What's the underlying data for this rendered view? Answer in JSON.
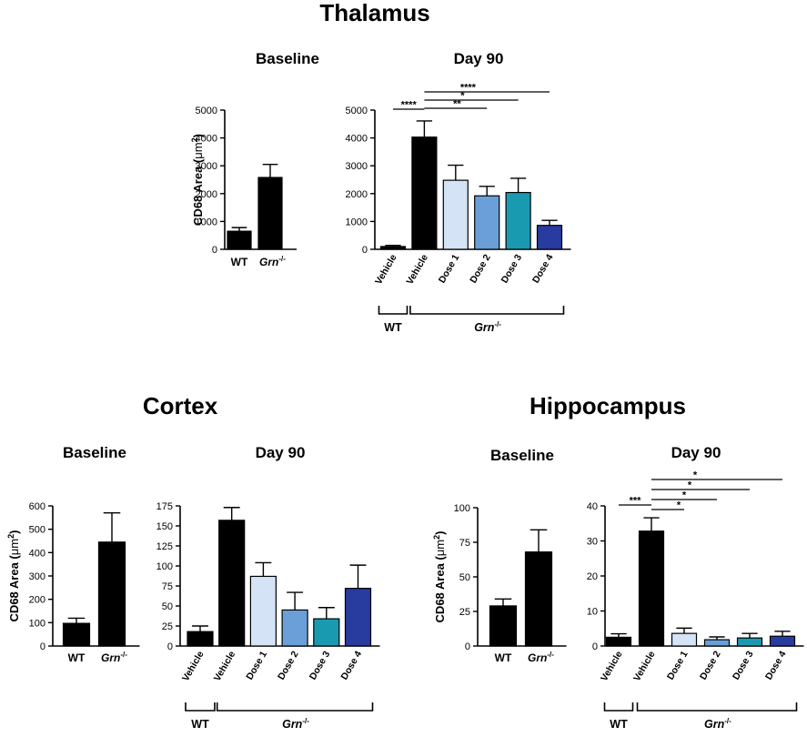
{
  "colors": {
    "wt": "#000000",
    "vehicle": "#000000",
    "dose1": "#d4e4f6",
    "dose2": "#6a9fd8",
    "dose3": "#1a9ab0",
    "dose4": "#283b9f"
  },
  "labels": {
    "ylabel_prefix": "CD68 Area (",
    "ylabel_unit": "μm",
    "ylabel_exp": "2",
    "ylabel_suffix": ")",
    "wt": "WT",
    "grn": "Grn",
    "grn_sup": "-/-"
  },
  "chart_data": [
    {
      "id": "thalamus-baseline",
      "type": "bar",
      "region": "Thalamus",
      "title": "Baseline",
      "ylabel": "CD68 Area (μm2)",
      "ylim": [
        0,
        5000
      ],
      "yticks": [
        0,
        1000,
        2000,
        3000,
        4000,
        5000
      ],
      "categories": [
        "WT",
        "Grn-/-"
      ],
      "values": [
        650,
        2580
      ],
      "errors": [
        130,
        470
      ],
      "color_keys": [
        "wt",
        "wt"
      ],
      "significance": []
    },
    {
      "id": "thalamus-day90",
      "type": "bar",
      "region": "Thalamus",
      "title": "Day 90",
      "ylim": [
        0,
        5000
      ],
      "yticks": [
        0,
        1000,
        2000,
        3000,
        4000,
        5000
      ],
      "categories": [
        "Vehicle",
        "Vehicle",
        "Dose 1",
        "Dose 2",
        "Dose 3",
        "Dose 4"
      ],
      "values": [
        100,
        4030,
        2480,
        1920,
        2040,
        860
      ],
      "errors": [
        40,
        580,
        540,
        340,
        510,
        180
      ],
      "color_keys": [
        "vehicle",
        "vehicle",
        "dose1",
        "dose2",
        "dose3",
        "dose4"
      ],
      "groups": [
        {
          "label": "WT",
          "from": 0,
          "to": 0
        },
        {
          "label": "Grn-/-",
          "from": 1,
          "to": 5
        }
      ],
      "significance": [
        {
          "from": 0,
          "to": 1,
          "label": "****"
        },
        {
          "from": 1,
          "to": 3,
          "label": "**"
        },
        {
          "from": 1,
          "to": 4,
          "label": "*"
        },
        {
          "from": 1,
          "to": 5,
          "label": "****"
        }
      ]
    },
    {
      "id": "cortex-baseline",
      "type": "bar",
      "region": "Cortex",
      "title": "Baseline",
      "ylabel": "CD68 Area (μm2)",
      "ylim": [
        0,
        600
      ],
      "yticks": [
        0,
        100,
        200,
        300,
        400,
        500,
        600
      ],
      "categories": [
        "WT",
        "Grn-/-"
      ],
      "values": [
        97,
        445
      ],
      "errors": [
        22,
        125
      ],
      "color_keys": [
        "wt",
        "wt"
      ],
      "significance": []
    },
    {
      "id": "cortex-day90",
      "type": "bar",
      "region": "Cortex",
      "title": "Day 90",
      "ylim": [
        0,
        175
      ],
      "yticks": [
        0,
        25,
        50,
        75,
        100,
        125,
        150,
        175
      ],
      "categories": [
        "Vehicle",
        "Vehicle",
        "Dose 1",
        "Dose 2",
        "Dose 3",
        "Dose 4"
      ],
      "values": [
        18,
        157,
        87,
        45,
        34,
        72
      ],
      "errors": [
        7,
        16,
        17,
        22,
        14,
        29
      ],
      "color_keys": [
        "vehicle",
        "vehicle",
        "dose1",
        "dose2",
        "dose3",
        "dose4"
      ],
      "groups": [
        {
          "label": "WT",
          "from": 0,
          "to": 0
        },
        {
          "label": "Grn-/-",
          "from": 1,
          "to": 5
        }
      ],
      "significance": []
    },
    {
      "id": "hippocampus-baseline",
      "type": "bar",
      "region": "Hippocampus",
      "title": "Baseline",
      "ylabel": "CD68 Area (μm2)",
      "ylim": [
        0,
        100
      ],
      "yticks": [
        0,
        25,
        50,
        75,
        100
      ],
      "categories": [
        "WT",
        "Grn-/-"
      ],
      "values": [
        29,
        68
      ],
      "errors": [
        5,
        16
      ],
      "color_keys": [
        "wt",
        "wt"
      ],
      "significance": []
    },
    {
      "id": "hippocampus-day90",
      "type": "bar",
      "region": "Hippocampus",
      "title": "Day 90",
      "ylim": [
        0,
        40
      ],
      "yticks": [
        0,
        10,
        20,
        30,
        40
      ],
      "categories": [
        "Vehicle",
        "Vehicle",
        "Dose 1",
        "Dose 2",
        "Dose 3",
        "Dose 4"
      ],
      "values": [
        2.5,
        32.8,
        3.6,
        1.8,
        2.3,
        2.8
      ],
      "errors": [
        1.0,
        3.8,
        1.5,
        0.8,
        1.3,
        1.4
      ],
      "color_keys": [
        "vehicle",
        "vehicle",
        "dose1",
        "dose2",
        "dose3",
        "dose4"
      ],
      "groups": [
        {
          "label": "WT",
          "from": 0,
          "to": 0
        },
        {
          "label": "Grn-/-",
          "from": 1,
          "to": 5
        }
      ],
      "significance": [
        {
          "from": 0,
          "to": 1,
          "label": "***"
        },
        {
          "from": 1,
          "to": 2,
          "label": "*"
        },
        {
          "from": 1,
          "to": 3,
          "label": "*"
        },
        {
          "from": 1,
          "to": 4,
          "label": "*"
        },
        {
          "from": 1,
          "to": 5,
          "label": "*"
        }
      ]
    }
  ],
  "regions": {
    "thalamus": "Thalamus",
    "cortex": "Cortex",
    "hippocampus": "Hippocampus"
  }
}
